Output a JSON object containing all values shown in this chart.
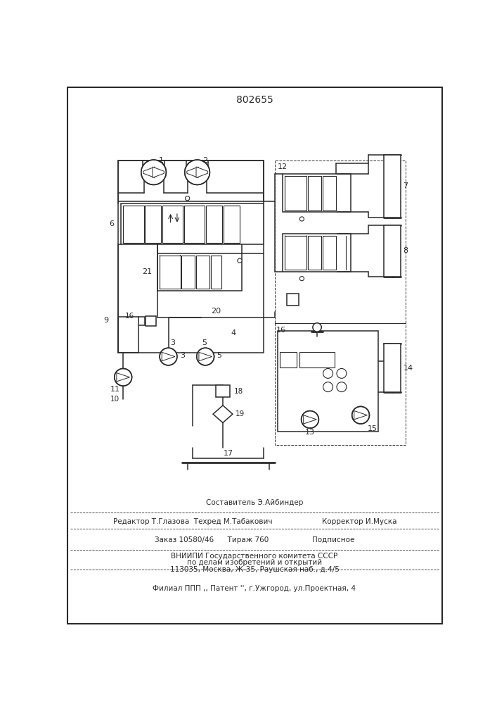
{
  "title": "802655",
  "bg_color": "#ffffff",
  "line_color": "#2a2a2a",
  "lw": 1.1,
  "footer": {
    "line1": "Составитель Э.Айбиндер",
    "line2a": "Редактор Т.Глазова  Техред М.Табакович",
    "line2b": "Корректор И.Муска",
    "line3": "Заказ 10580/46      Тираж 760                   Подписное",
    "line4": "ВНИИПИ Государственного комитета СССР",
    "line5": "по делам изобретений и открытий",
    "line6": "113035, Москва, Ж-35, Раушская наб., д.4/5",
    "line7": "Филиал ППП ,, Патент '', г.Ужгород, ул.Проектная, 4"
  }
}
